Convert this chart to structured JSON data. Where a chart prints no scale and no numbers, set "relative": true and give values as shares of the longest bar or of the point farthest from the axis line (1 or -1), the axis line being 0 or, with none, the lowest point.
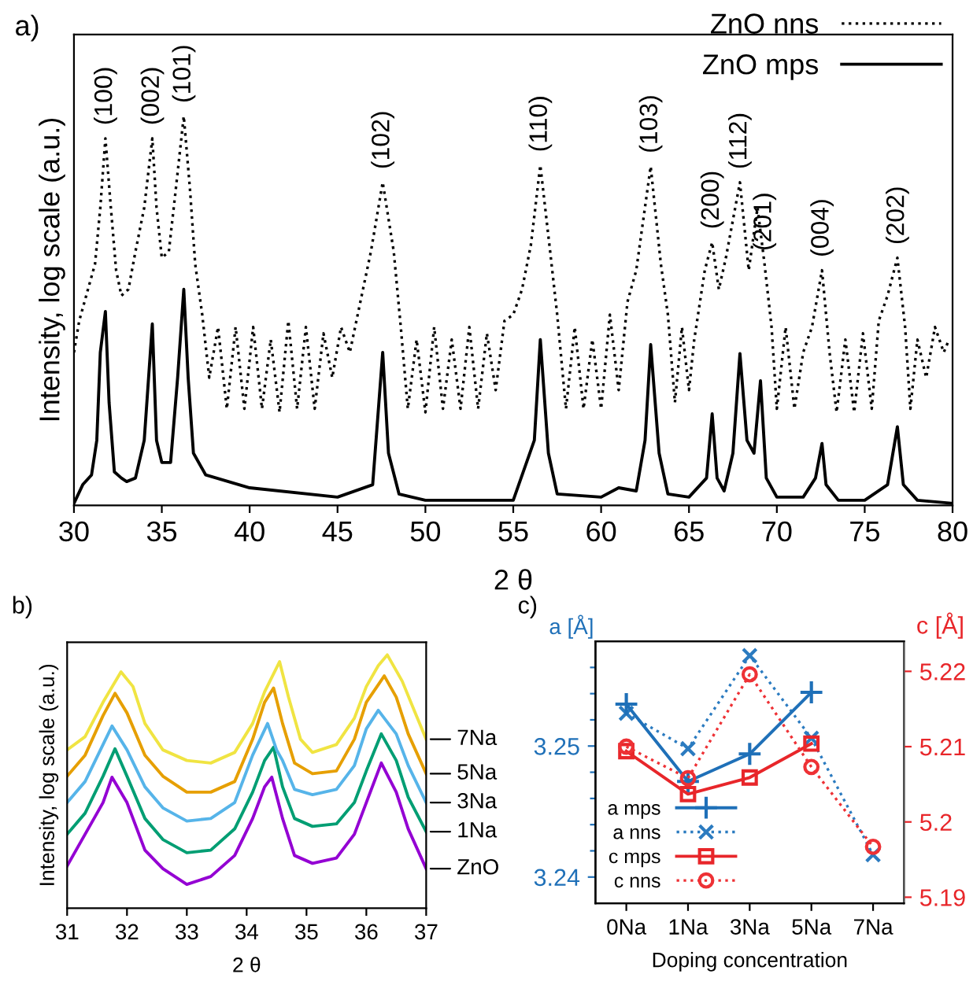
{
  "chart_data": [
    {
      "type": "line",
      "relative": true,
      "xlabel": "2 θ",
      "ylabel": "Intensity, log scale (a.u.)",
      "xlim": [
        30,
        80
      ],
      "xticks": [
        30,
        35,
        40,
        45,
        50,
        55,
        60,
        65,
        70,
        75,
        80
      ],
      "legend": "top right",
      "tick_labels": "x",
      "annotations": [
        "a)",
        {
          "text": "(100)",
          "x": 31.79,
          "y": 0.943
        },
        {
          "text": "(002)",
          "x": 34.46,
          "y": 0.943
        },
        {
          "text": "(101)",
          "x": 36.25,
          "y": 1.0
        },
        {
          "text": "(102)",
          "x": 47.57,
          "y": 0.83
        },
        {
          "text": "(110)",
          "x": 56.54,
          "y": 0.874
        },
        {
          "text": "(103)",
          "x": 62.82,
          "y": 0.871
        },
        {
          "text": "(200)",
          "x": 66.32,
          "y": 0.676
        },
        {
          "text": "(112)",
          "x": 67.9,
          "y": 0.83
        },
        {
          "text": "(201)",
          "x": 69.3,
          "y": 0.62
        },
        {
          "text": "(004)",
          "x": 72.57,
          "y": 0.604
        },
        {
          "text": "(202)",
          "x": 76.86,
          "y": 0.636
        }
      ],
      "series": [
        {
          "name": "ZnO nns",
          "color": "#000000",
          "line_style": "dotted",
          "x": [
            30,
            30.3,
            30.7,
            31.2,
            31.5,
            31.79,
            32.1,
            32.4,
            32.7,
            33.1,
            33.5,
            34.0,
            34.46,
            34.7,
            35.0,
            35.4,
            35.8,
            36.25,
            36.6,
            36.9,
            37.3,
            37.7,
            38.2,
            38.7,
            39.2,
            39.7,
            40.2,
            40.7,
            41.2,
            41.7,
            42.2,
            42.7,
            43.2,
            43.7,
            44.2,
            44.7,
            45.2,
            45.7,
            46.3,
            46.9,
            47.57,
            48.2,
            48.6,
            49.0,
            49.5,
            50.0,
            50.5,
            51.0,
            51.5,
            52.0,
            52.5,
            53.0,
            53.5,
            54,
            54.5,
            55.0,
            55.5,
            56.0,
            56.54,
            57.1,
            57.5,
            58.0,
            58.5,
            59.0,
            59.5,
            60.0,
            60.5,
            61.0,
            61.5,
            62.0,
            62.82,
            63.4,
            63.8,
            64.2,
            64.6,
            65.0,
            65.3,
            65.9,
            66.32,
            66.7,
            67.1,
            67.9,
            68.4,
            68.9,
            69.3,
            69.7,
            70.0,
            70.5,
            71.0,
            71.5,
            72.0,
            72.57,
            73.0,
            73.4,
            73.9,
            74.4,
            74.9,
            75.4,
            75.8,
            76.3,
            76.86,
            77.3,
            77.6,
            78,
            78.5,
            79,
            79.5,
            79.8
          ],
          "values": [
            0.393,
            0.474,
            0.539,
            0.62,
            0.765,
            0.943,
            0.765,
            0.604,
            0.539,
            0.555,
            0.652,
            0.765,
            0.943,
            0.765,
            0.636,
            0.652,
            0.814,
            1.0,
            0.814,
            0.62,
            0.49,
            0.328,
            0.458,
            0.248,
            0.458,
            0.248,
            0.458,
            0.248,
            0.426,
            0.239,
            0.474,
            0.248,
            0.458,
            0.248,
            0.442,
            0.328,
            0.458,
            0.393,
            0.523,
            0.652,
            0.83,
            0.652,
            0.458,
            0.248,
            0.426,
            0.239,
            0.458,
            0.248,
            0.426,
            0.248,
            0.458,
            0.248,
            0.442,
            0.296,
            0.474,
            0.49,
            0.555,
            0.668,
            0.874,
            0.652,
            0.49,
            0.248,
            0.458,
            0.248,
            0.426,
            0.248,
            0.49,
            0.296,
            0.523,
            0.604,
            0.871,
            0.62,
            0.49,
            0.264,
            0.458,
            0.296,
            0.426,
            0.604,
            0.676,
            0.555,
            0.636,
            0.83,
            0.604,
            0.765,
            0.62,
            0.458,
            0.248,
            0.458,
            0.248,
            0.393,
            0.458,
            0.604,
            0.393,
            0.239,
            0.426,
            0.239,
            0.442,
            0.248,
            0.474,
            0.539,
            0.636,
            0.458,
            0.248,
            0.426,
            0.328,
            0.458,
            0.393,
            0.426
          ]
        },
        {
          "name": "ZnO mps",
          "color": "#000000",
          "line_style": "solid",
          "x": [
            30,
            30.5,
            31,
            31.3,
            31.5,
            31.79,
            32.0,
            32.3,
            32.7,
            33,
            33.5,
            34.0,
            34.46,
            34.7,
            35,
            35.5,
            35.9,
            36.25,
            36.5,
            36.8,
            37.5,
            40,
            45,
            47,
            47.57,
            47.9,
            48.5,
            50,
            55,
            56.2,
            56.54,
            57,
            57.5,
            60,
            61,
            62,
            62.5,
            62.82,
            63.3,
            63.8,
            65,
            66,
            66.32,
            66.6,
            67,
            67.5,
            67.9,
            68.3,
            68.7,
            69.07,
            69.4,
            70,
            71.5,
            72.2,
            72.57,
            72.8,
            73.5,
            75,
            76.3,
            76.86,
            77.2,
            78,
            80
          ],
          "values": [
            0.005,
            0.053,
            0.078,
            0.167,
            0.393,
            0.498,
            0.264,
            0.086,
            0.07,
            0.061,
            0.07,
            0.167,
            0.466,
            0.167,
            0.11,
            0.11,
            0.328,
            0.555,
            0.328,
            0.134,
            0.078,
            0.045,
            0.021,
            0.053,
            0.393,
            0.134,
            0.029,
            0.013,
            0.013,
            0.167,
            0.426,
            0.134,
            0.029,
            0.021,
            0.045,
            0.037,
            0.167,
            0.413,
            0.134,
            0.029,
            0.021,
            0.07,
            0.235,
            0.07,
            0.037,
            0.134,
            0.39,
            0.167,
            0.134,
            0.32,
            0.07,
            0.021,
            0.021,
            0.07,
            0.159,
            0.053,
            0.013,
            0.013,
            0.053,
            0.202,
            0.053,
            0.013,
            0.005
          ]
        }
      ]
    },
    {
      "type": "line",
      "relative": true,
      "xlabel": "2 θ",
      "ylabel": "Intensity, log scale (a.u.)",
      "xlim": [
        31,
        37
      ],
      "xticks": [
        31,
        32,
        33,
        34,
        35,
        36,
        37
      ],
      "tick_labels": "x",
      "annotations": [
        "b)"
      ],
      "series": [
        {
          "name": "ZnO",
          "color": "#9400d3",
          "x": [
            31,
            31.3,
            31.6,
            31.75,
            32.0,
            32.3,
            32.6,
            33,
            33.4,
            33.8,
            34.1,
            34.3,
            34.42,
            34.6,
            34.8,
            35.1,
            35.5,
            35.8,
            36.0,
            36.25,
            36.5,
            36.7,
            37
          ],
          "values": [
            0.167,
            0.292,
            0.417,
            0.517,
            0.417,
            0.229,
            0.156,
            0.094,
            0.125,
            0.208,
            0.354,
            0.479,
            0.517,
            0.354,
            0.208,
            0.177,
            0.198,
            0.292,
            0.417,
            0.573,
            0.458,
            0.313,
            0.156
          ]
        },
        {
          "name": "1Na",
          "color": "#009e73",
          "x": [
            31,
            31.3,
            31.6,
            31.8,
            32.0,
            32.3,
            32.6,
            33,
            33.4,
            33.8,
            34.1,
            34.3,
            34.45,
            34.6,
            34.8,
            35.1,
            35.5,
            35.8,
            36.0,
            36.25,
            36.5,
            36.7,
            37
          ],
          "values": [
            0.292,
            0.375,
            0.521,
            0.629,
            0.521,
            0.354,
            0.271,
            0.219,
            0.229,
            0.313,
            0.458,
            0.583,
            0.635,
            0.479,
            0.354,
            0.323,
            0.333,
            0.417,
            0.542,
            0.688,
            0.583,
            0.438,
            0.302
          ]
        },
        {
          "name": "3Na",
          "color": "#56b4e9",
          "x": [
            31,
            31.3,
            31.6,
            31.75,
            32.0,
            32.3,
            32.6,
            33,
            33.4,
            33.8,
            34.1,
            34.35,
            34.5,
            34.6,
            34.8,
            35.1,
            35.5,
            35.8,
            36.0,
            36.2,
            36.5,
            36.7,
            37
          ],
          "values": [
            0.417,
            0.5,
            0.646,
            0.719,
            0.625,
            0.479,
            0.396,
            0.344,
            0.354,
            0.417,
            0.604,
            0.729,
            0.625,
            0.583,
            0.469,
            0.448,
            0.469,
            0.563,
            0.708,
            0.781,
            0.688,
            0.563,
            0.417
          ]
        },
        {
          "name": "5Na",
          "color": "#e69f00",
          "x": [
            31,
            31.3,
            31.6,
            31.8,
            32.0,
            32.3,
            32.6,
            33,
            33.4,
            33.8,
            34.1,
            34.3,
            34.45,
            34.6,
            34.8,
            35.1,
            35.5,
            35.8,
            36.0,
            36.3,
            36.5,
            36.7,
            37
          ],
          "values": [
            0.521,
            0.604,
            0.76,
            0.848,
            0.771,
            0.604,
            0.521,
            0.458,
            0.458,
            0.5,
            0.667,
            0.813,
            0.869,
            0.729,
            0.573,
            0.531,
            0.542,
            0.667,
            0.813,
            0.917,
            0.833,
            0.688,
            0.531
          ]
        },
        {
          "name": "7Na",
          "color": "#f0e442",
          "x": [
            31,
            31.3,
            31.6,
            31.9,
            32.1,
            32.3,
            32.6,
            33,
            33.4,
            33.8,
            34.1,
            34.3,
            34.55,
            34.7,
            34.9,
            35.1,
            35.5,
            35.8,
            36.0,
            36.2,
            36.35,
            36.6,
            36.8,
            37
          ],
          "values": [
            0.625,
            0.677,
            0.813,
            0.933,
            0.875,
            0.729,
            0.625,
            0.583,
            0.573,
            0.615,
            0.729,
            0.854,
            0.973,
            0.833,
            0.667,
            0.615,
            0.646,
            0.75,
            0.875,
            0.958,
            1.0,
            0.896,
            0.781,
            0.667
          ]
        }
      ]
    },
    {
      "type": "line",
      "xlabel": "Doping concentration",
      "ylabel": "a [Å]",
      "y2label": "c [Å]",
      "categories": [
        "0Na",
        "1Na",
        "3Na",
        "5Na",
        "7Na"
      ],
      "ylim": [
        3.238,
        3.258
      ],
      "yticks": [
        3.24,
        {
          "value": 3.242,
          "label": null
        },
        {
          "value": 3.244,
          "label": null
        },
        {
          "value": 3.246,
          "label": null
        },
        {
          "value": 3.248,
          "label": null
        },
        3.25,
        {
          "value": 3.252,
          "label": null
        },
        {
          "value": 3.254,
          "label": null
        },
        {
          "value": 3.256,
          "label": null
        }
      ],
      "y2lim": [
        5.1892,
        5.224
      ],
      "y2ticks": [
        5.19,
        5.2,
        5.21,
        5.22
      ],
      "legend": "bottom left",
      "annotations": [
        "c)"
      ],
      "series": [
        {
          "name": "a mps",
          "color": "#1f70b8",
          "marker": "cross",
          "line_style": "solid",
          "values": [
            3.2532,
            3.2473,
            3.2494,
            3.2541,
            null
          ]
        },
        {
          "name": "a nns",
          "color": "#2b7bc0",
          "marker": "x",
          "line_style": "dotted",
          "values": [
            3.2525,
            3.2498,
            3.2569,
            3.2506,
            3.2417
          ]
        },
        {
          "name": "c mps",
          "color": "#e8262a",
          "marker": "square",
          "line_style": "solid",
          "axis": "y2",
          "values": [
            5.2094,
            5.2037,
            5.2059,
            5.2104,
            null
          ]
        },
        {
          "name": "c nns",
          "color": "#ee3135",
          "marker": "circle",
          "line_style": "dotted",
          "axis": "y2",
          "values": [
            5.21,
            5.2058,
            5.2196,
            5.2073,
            5.1967
          ]
        }
      ]
    }
  ]
}
